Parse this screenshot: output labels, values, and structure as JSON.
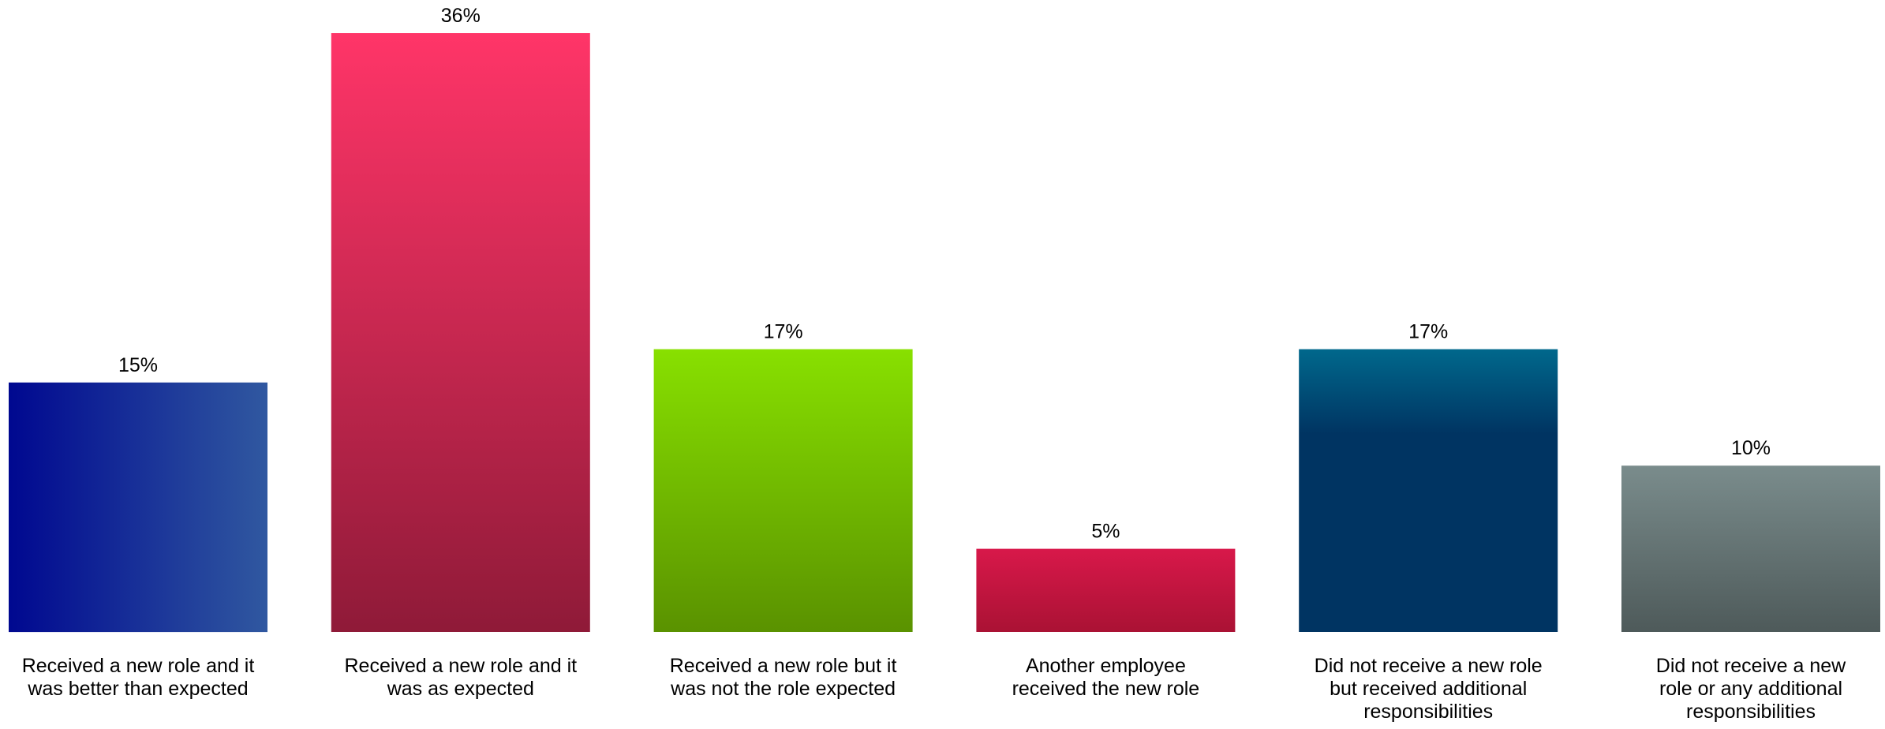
{
  "chart_data": {
    "type": "bar",
    "title": "",
    "xlabel": "",
    "ylabel": "",
    "ylim": [
      0,
      36
    ],
    "grid": false,
    "legend": "none",
    "categories": [
      [
        "Received a new role and it",
        "was better than expected"
      ],
      [
        "Received a new role and it",
        "was as expected"
      ],
      [
        "Received a new role but it",
        "was not the role expected"
      ],
      [
        "Another employee",
        "received the new role"
      ],
      [
        "Did not receive a new role",
        "but received additional",
        "responsibilities"
      ],
      [
        "Did not receive a new",
        "role or any additional",
        "responsibilities"
      ]
    ],
    "values": [
      15,
      36,
      17,
      5,
      17,
      10
    ],
    "value_labels": [
      "15%",
      "36%",
      "17%",
      "5%",
      "17%",
      "10%"
    ],
    "bar_colors": [
      {
        "dir": "horizontal",
        "from": "#000890",
        "to": "#3058a0"
      },
      {
        "dir": "vertical",
        "from": "#ff3568",
        "to": "#8f1a38"
      },
      {
        "dir": "vertical",
        "from": "#88e000",
        "to": "#5a9200"
      },
      {
        "dir": "vertical",
        "from": "#d8184a",
        "to": "#aa1234"
      },
      {
        "dir": "vertical",
        "from": "#00688c",
        "to": "#003462",
        "split": 0.3
      },
      {
        "dir": "vertical",
        "from": "#7a8c8c",
        "to": "#4e5a5a"
      }
    ]
  }
}
